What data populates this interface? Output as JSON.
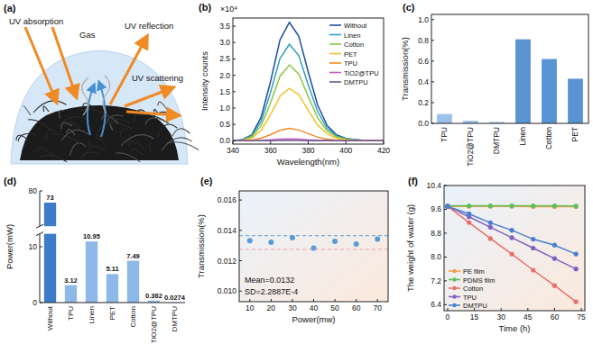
{
  "panel_a": {
    "label": "(a)",
    "texts": [
      "UV absorption",
      "Gas",
      "UV reflection",
      "UV scattering"
    ]
  },
  "chart_data": [
    {
      "label": "(b)",
      "type": "line",
      "x_label": "Wavelength(nm)",
      "y_label": "Intensity counts",
      "annotations": [
        "×10⁴"
      ],
      "x": [
        340,
        345,
        350,
        355,
        360,
        365,
        370,
        375,
        380,
        385,
        390,
        395,
        400,
        405,
        410,
        415,
        420
      ],
      "xlim": [
        340,
        420
      ],
      "xticks": [
        340,
        360,
        380,
        400,
        420
      ],
      "ylim": [
        -0.1,
        3.75
      ],
      "yticks": [
        {
          "value": 0,
          "label": "0.0"
        },
        0.5,
        {
          "value": 1,
          "label": "1.0"
        },
        1.5,
        {
          "value": 2,
          "label": "2.0"
        },
        2.5,
        {
          "value": 3,
          "label": "3.0"
        },
        3.5
      ],
      "grid": false,
      "legend": "upper right",
      "series": [
        {
          "name": "Without",
          "color": "#1f4e9e",
          "values": [
            0,
            0.04,
            0.18,
            0.72,
            1.81,
            3.08,
            3.62,
            3.19,
            2.1,
            1.09,
            0.47,
            0.18,
            0.07,
            0.04,
            0.01,
            0,
            0
          ]
        },
        {
          "name": "Linen",
          "color": "#2e9fc5",
          "values": [
            0,
            0.03,
            0.15,
            0.59,
            1.48,
            2.51,
            2.95,
            2.6,
            1.71,
            0.89,
            0.38,
            0.15,
            0.06,
            0.03,
            0.01,
            0,
            0
          ]
        },
        {
          "name": "Cotton",
          "color": "#8cc63f",
          "values": [
            0,
            0.02,
            0.12,
            0.46,
            1.16,
            1.97,
            2.32,
            2.04,
            1.35,
            0.7,
            0.3,
            0.12,
            0.05,
            0.02,
            0,
            0,
            0
          ]
        },
        {
          "name": "PET",
          "color": "#f2c12e",
          "values": [
            0,
            0.02,
            0.08,
            0.32,
            0.8,
            1.36,
            1.6,
            1.41,
            0.93,
            0.48,
            0.21,
            0.08,
            0.03,
            0.02,
            0,
            0,
            0
          ]
        },
        {
          "name": "TPU",
          "color": "#f08a24",
          "values": [
            0,
            0,
            0.02,
            0.08,
            0.19,
            0.32,
            0.38,
            0.33,
            0.22,
            0.11,
            0.05,
            0.02,
            0.01,
            0,
            0,
            0,
            0
          ]
        },
        {
          "name": "TiO2@TPU",
          "color": "#c85ac8",
          "values": [
            0,
            0,
            0,
            0.01,
            0.03,
            0.05,
            0.06,
            0.05,
            0.03,
            0.02,
            0.01,
            0,
            0,
            0,
            0,
            0,
            0
          ]
        },
        {
          "name": "DMTPU",
          "color": "#6a5a8a",
          "values": [
            0,
            0,
            0,
            0,
            0,
            0.01,
            0.01,
            0.01,
            0,
            0,
            0,
            0,
            0,
            0,
            0,
            0,
            0
          ]
        }
      ]
    },
    {
      "label": "(c)",
      "type": "bar",
      "y_label": "Transmission(%)",
      "categories": [
        "TPU",
        "TiO2@TPU",
        "DMTPU",
        "Linen",
        "Cotton",
        "PET"
      ],
      "values": [
        0.09,
        0.025,
        0.013,
        0.81,
        0.62,
        0.43
      ],
      "colors": [
        "#9cc2ea",
        "#9cc2ea",
        "#9cc2ea",
        "#5a93d2",
        "#5a93d2",
        "#5a93d2"
      ],
      "ylim": [
        0,
        1.05
      ],
      "yticks": [
        {
          "value": 0,
          "label": "0.0"
        },
        0.2,
        0.4,
        0.6,
        0.8,
        {
          "value": 1,
          "label": "1.0"
        }
      ],
      "grid": false
    },
    {
      "label": "(d)",
      "type": "bar",
      "y_label": "Power(mW)",
      "categories": [
        "Without",
        "TPU",
        "Linen",
        "PET",
        "Cotton",
        "TiO2@TPU",
        "DMTPU"
      ],
      "values": [
        73,
        3.12,
        10.95,
        5.11,
        7.49,
        0.362,
        0.0274
      ],
      "colors": [
        "#3d7cc9",
        "#8db8e8",
        "#8db8e8",
        "#8db8e8",
        "#8db8e8",
        "#8db8e8",
        "#8db8e8"
      ],
      "data_labels": true,
      "ylim": [
        0,
        80
      ],
      "y_break": [
        12,
        60
      ],
      "yticks": [
        0,
        10,
        80
      ],
      "grid": false
    },
    {
      "label": "(e)",
      "type": "scatter",
      "x_label": "Power(mw)",
      "y_label": "Transmission(%)",
      "x": [
        10,
        20,
        30,
        40,
        50,
        60,
        70
      ],
      "values": [
        0.01332,
        0.01322,
        0.01352,
        0.01283,
        0.01328,
        0.0131,
        0.01342
      ],
      "color": "#5b9bd5",
      "marker": "circle",
      "xlim": [
        5,
        75
      ],
      "xticks": [
        10,
        20,
        30,
        40,
        50,
        60,
        70
      ],
      "ylim": [
        0.0093,
        0.0166
      ],
      "yticks": [
        {
          "value": 0.01,
          "label": "0.010"
        },
        {
          "value": 0.012,
          "label": "0.012"
        },
        {
          "value": 0.014,
          "label": "0.014"
        },
        {
          "value": 0.016,
          "label": "0.016"
        }
      ],
      "ref_lines": [
        0.01365,
        0.01275
      ],
      "annotations": [
        "Mean=0.0132",
        "SD=2.2887E-4"
      ],
      "grid": false
    },
    {
      "label": "(f)",
      "type": "line",
      "x_label": "Time (h)",
      "y_label": "The weight of water (g)",
      "x": [
        0,
        12,
        24,
        36,
        48,
        60,
        72
      ],
      "xlim": [
        -2,
        77
      ],
      "xticks": [
        0,
        15,
        30,
        45,
        60,
        75
      ],
      "ylim": [
        6.2,
        10.4
      ],
      "yticks": [
        6.4,
        7.2,
        {
          "value": 8,
          "label": "8.0"
        },
        8.8,
        9.6,
        10.4
      ],
      "marker": "circle",
      "legend": "lower left",
      "grid": false,
      "series": [
        {
          "name": "PE film",
          "color": "#f0a050",
          "values": [
            9.7,
            9.7,
            9.7,
            9.7,
            9.69,
            9.69,
            9.69
          ]
        },
        {
          "name": "PDMS film",
          "color": "#5cc05c",
          "values": [
            9.72,
            9.72,
            9.72,
            9.72,
            9.72,
            9.72,
            9.71
          ]
        },
        {
          "name": "Cotton",
          "color": "#e8706a",
          "values": [
            9.7,
            9.16,
            8.62,
            8.1,
            7.56,
            7.04,
            6.5
          ]
        },
        {
          "name": "TPU",
          "color": "#8060c0",
          "values": [
            9.7,
            9.35,
            9.0,
            8.65,
            8.3,
            7.95,
            7.6
          ]
        },
        {
          "name": "DMTPU",
          "color": "#4a7fd0",
          "values": [
            9.7,
            9.45,
            9.15,
            8.9,
            8.6,
            8.4,
            8.1
          ]
        }
      ]
    }
  ]
}
